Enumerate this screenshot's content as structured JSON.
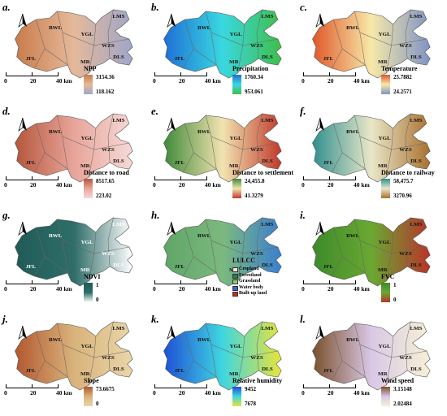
{
  "towns": [
    "BWL",
    "YGL",
    "LMS",
    "JFL",
    "MR",
    "WZS",
    "DLS"
  ],
  "scale_labels": [
    "0",
    "20",
    "40 km"
  ],
  "panels": [
    {
      "label": "a.",
      "title": "NPP",
      "max": "3154.36",
      "min": "118.162",
      "colors": [
        "#c97b4a",
        "#e5b99a",
        "#9fa6c9"
      ]
    },
    {
      "label": "b.",
      "title": "Precipitation",
      "max": "1760.34",
      "min": "953.061",
      "colors": [
        "#1f6fd6",
        "#39d8e0",
        "#3fbe4a"
      ]
    },
    {
      "label": "c.",
      "title": "Temperature",
      "max": "25.7882",
      "min": "24.2571",
      "colors": [
        "#e0572a",
        "#f7e9a8",
        "#7f93c7"
      ]
    },
    {
      "label": "d.",
      "title": "Distance to road",
      "max": "8517.65",
      "min": "223.02",
      "colors": [
        "#b5563c",
        "#e8a59a",
        "#f6d9d6"
      ]
    },
    {
      "label": "e.",
      "title": "Distance to settlement",
      "max": "24,455.8",
      "min": "41.3279",
      "colors": [
        "#3e8a3a",
        "#f2e3b0",
        "#c0392b"
      ]
    },
    {
      "label": "f.",
      "title": "Distance to railway",
      "max": "58,475.7",
      "min": "3270.96",
      "colors": [
        "#2f8f8f",
        "#e9e7c8",
        "#a9702f"
      ]
    },
    {
      "label": "g.",
      "title": "NDVI",
      "max": "1",
      "min": "0",
      "colors": [
        "#1f5c57",
        "#2f6d68",
        "#ffffff"
      ]
    },
    {
      "label": "h.",
      "title": "LULCC",
      "max": "",
      "min": "",
      "colors": [
        "#5fa567",
        "#7cb97e",
        "#3a7fd0"
      ],
      "categories": [
        {
          "name": "Cropland",
          "color": "#f6e9c8"
        },
        {
          "name": "Forestland",
          "color": "#2f7f3c"
        },
        {
          "name": "Grassland",
          "color": "#8fcf6a"
        },
        {
          "name": "Water body",
          "color": "#3a62d6"
        },
        {
          "name": "Built-up land",
          "color": "#c72a1e"
        }
      ]
    },
    {
      "label": "i.",
      "title": "FVC",
      "max": "1",
      "min": "0",
      "colors": [
        "#3c8a2a",
        "#6aa832",
        "#b9332a"
      ]
    },
    {
      "label": "j.",
      "title": "Slope",
      "max": "73.6675",
      "min": "0",
      "colors": [
        "#b3572f",
        "#d9b37b",
        "#e9d6a8"
      ]
    },
    {
      "label": "k.",
      "title": "Relative humidity",
      "max": "9452",
      "min": "7678",
      "colors": [
        "#1f4fd6",
        "#3fd6e0",
        "#e9e43a"
      ]
    },
    {
      "label": "l.",
      "title": "Wind speed",
      "max": "3.15148",
      "min": "2.02484",
      "colors": [
        "#7a4f2a",
        "#d9c8e6",
        "#f6f1d6"
      ]
    }
  ]
}
